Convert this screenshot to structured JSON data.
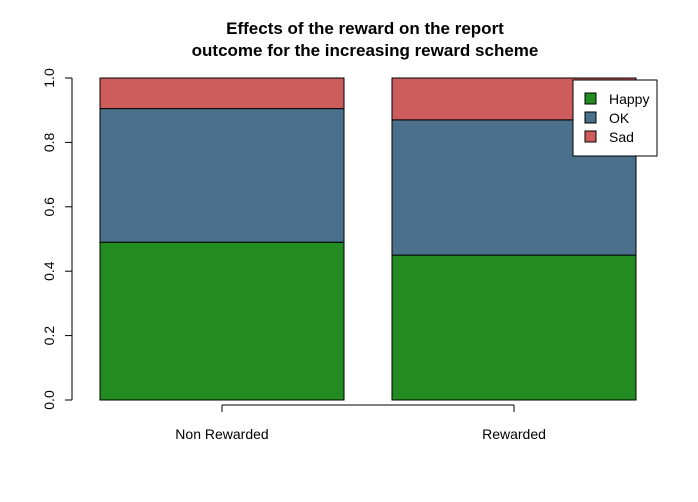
{
  "chart_data": {
    "type": "bar",
    "stacked": true,
    "title": [
      "Effects of the reward on the report",
      "outcome for the increasing reward scheme"
    ],
    "xlabel": "",
    "ylabel": "",
    "categories": [
      "Non Rewarded",
      "Rewarded"
    ],
    "ylim": [
      0,
      1
    ],
    "yticks": [
      "0.0",
      "0.2",
      "0.4",
      "0.6",
      "0.8",
      "1.0"
    ],
    "series": [
      {
        "name": "Happy",
        "values": [
          0.49,
          0.45
        ],
        "color": "#228B22"
      },
      {
        "name": "OK",
        "values": [
          0.415,
          0.42
        ],
        "color": "#4A708B"
      },
      {
        "name": "Sad",
        "values": [
          0.095,
          0.13
        ],
        "color": "#CD5C5C"
      }
    ],
    "legend": {
      "position": "top-right"
    },
    "grid": false
  }
}
